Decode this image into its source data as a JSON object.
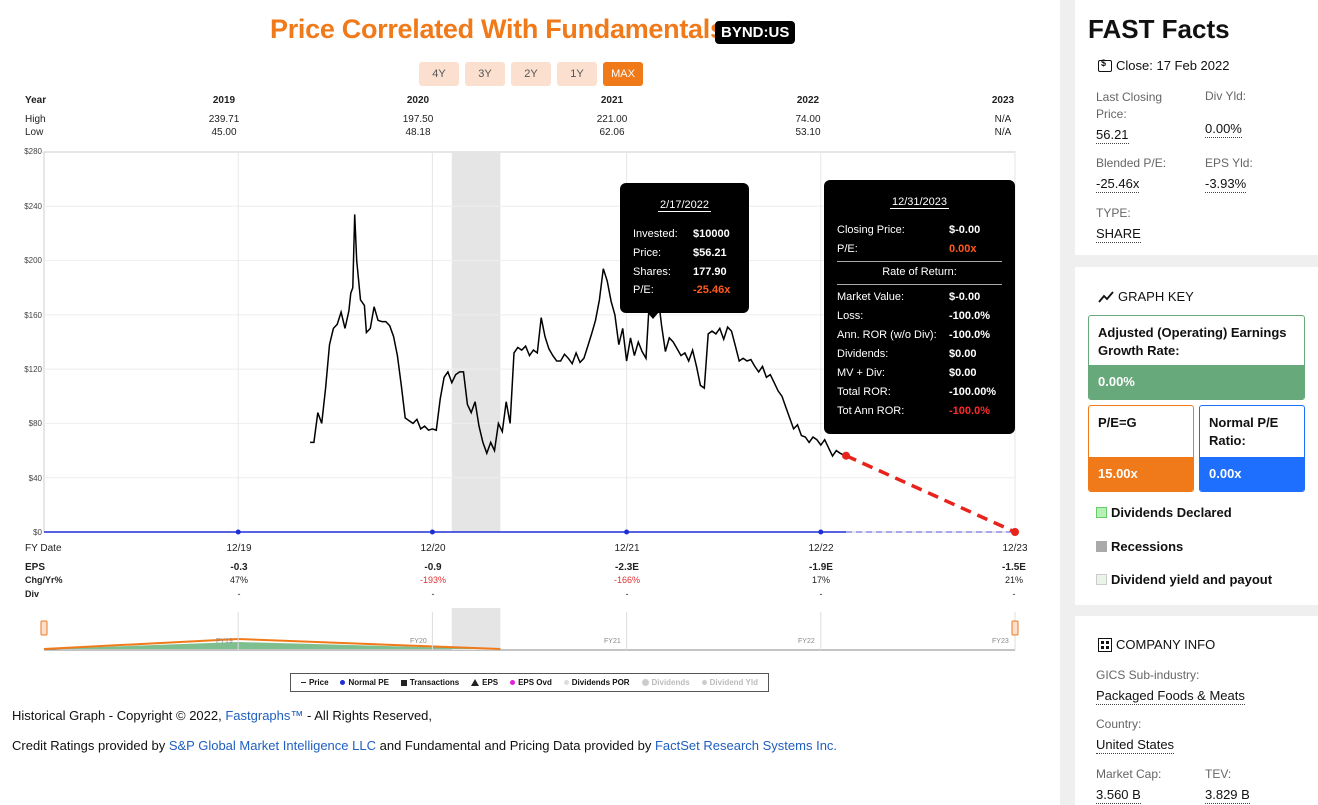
{
  "header": {
    "title": "Price Correlated With Fundamentals",
    "ticker": "BYND:US",
    "ranges": [
      {
        "label": "4Y",
        "active": false
      },
      {
        "label": "3Y",
        "active": false
      },
      {
        "label": "2Y",
        "active": false
      },
      {
        "label": "1Y",
        "active": false
      },
      {
        "label": "MAX",
        "active": true
      }
    ]
  },
  "year_table": {
    "year_label": "Year",
    "high_label": "High",
    "low_label": "Low",
    "years": [
      "2019",
      "2020",
      "2021",
      "2022",
      "2023"
    ],
    "high": [
      "239.71",
      "197.50",
      "221.00",
      "74.00",
      "N/A"
    ],
    "low": [
      "45.00",
      "48.18",
      "62.06",
      "53.10",
      "N/A"
    ]
  },
  "chart_data": {
    "type": "line",
    "y_ticks": [
      "$280",
      "$240",
      "$200",
      "$160",
      "$120",
      "$80",
      "$40",
      "$0"
    ],
    "ylim": [
      0,
      280
    ],
    "x_ticks": [
      "12/19",
      "12/20",
      "12/21",
      "12/22",
      "12/23"
    ],
    "fy_date_label": "FY Date",
    "recession_band": {
      "start": 2020.1,
      "end": 2020.35
    },
    "series": [
      {
        "name": "Price",
        "x": [
          2019.37,
          2019.39,
          2019.41,
          2019.43,
          2019.45,
          2019.47,
          2019.49,
          2019.51,
          2019.53,
          2019.55,
          2019.57,
          2019.58,
          2019.59,
          2019.6,
          2019.61,
          2019.63,
          2019.65,
          2019.66,
          2019.68,
          2019.7,
          2019.72,
          2019.74,
          2019.76,
          2019.78,
          2019.8,
          2019.82,
          2019.84,
          2019.86,
          2019.88,
          2019.9,
          2019.92,
          2019.94,
          2019.96,
          2019.98,
          2020.0,
          2020.02,
          2020.04,
          2020.06,
          2020.08,
          2020.1,
          2020.12,
          2020.14,
          2020.16,
          2020.18,
          2020.2,
          2020.22,
          2020.24,
          2020.26,
          2020.28,
          2020.3,
          2020.32,
          2020.34,
          2020.36,
          2020.38,
          2020.4,
          2020.42,
          2020.44,
          2020.46,
          2020.48,
          2020.5,
          2020.52,
          2020.54,
          2020.56,
          2020.58,
          2020.6,
          2020.62,
          2020.64,
          2020.66,
          2020.68,
          2020.7,
          2020.72,
          2020.74,
          2020.76,
          2020.78,
          2020.8,
          2020.82,
          2020.84,
          2020.86,
          2020.88,
          2020.9,
          2020.92,
          2020.94,
          2020.96,
          2020.98,
          2021.0,
          2021.02,
          2021.04,
          2021.06,
          2021.08,
          2021.1,
          2021.12,
          2021.14,
          2021.16,
          2021.18,
          2021.2,
          2021.22,
          2021.24,
          2021.26,
          2021.28,
          2021.3,
          2021.32,
          2021.34,
          2021.36,
          2021.38,
          2021.4,
          2021.42,
          2021.44,
          2021.46,
          2021.48,
          2021.5,
          2021.52,
          2021.54,
          2021.56,
          2021.58,
          2021.6,
          2021.62,
          2021.64,
          2021.66,
          2021.68,
          2021.7,
          2021.72,
          2021.74,
          2021.76,
          2021.78,
          2021.8,
          2021.82,
          2021.84,
          2021.86,
          2021.88,
          2021.9,
          2021.92,
          2021.94,
          2021.96,
          2021.98,
          2022.0,
          2022.02,
          2022.04,
          2022.06,
          2022.08,
          2022.1,
          2022.13
        ],
        "values": [
          66,
          66,
          88,
          80,
          106,
          138,
          150,
          153,
          162,
          150,
          163,
          176,
          180,
          234,
          200,
          171,
          167,
          147,
          150,
          166,
          156,
          155,
          155,
          152,
          144,
          130,
          108,
          84,
          82,
          80,
          83,
          76,
          78,
          75,
          76,
          75,
          98,
          114,
          118,
          110,
          116,
          118,
          118,
          94,
          88,
          96,
          78,
          66,
          58,
          66,
          60,
          80,
          74,
          96,
          80,
          132,
          136,
          134,
          137,
          130,
          134,
          132,
          158,
          144,
          135,
          130,
          126,
          126,
          131,
          128,
          124,
          132,
          125,
          128,
          137,
          146,
          156,
          171,
          194,
          185,
          170,
          160,
          138,
          150,
          126,
          143,
          130,
          140,
          133,
          128,
          177,
          170,
          176,
          152,
          133,
          143,
          140,
          135,
          130,
          132,
          126,
          134,
          122,
          108,
          106,
          146,
          148,
          146,
          150,
          142,
          151,
          148,
          137,
          126,
          128,
          126,
          127,
          122,
          118,
          122,
          114,
          116,
          110,
          104,
          100,
          92,
          84,
          76,
          79,
          71,
          70,
          66,
          70,
          68,
          64,
          68,
          62,
          56,
          60,
          58,
          56
        ],
        "color": "#000000"
      },
      {
        "name": "Projection",
        "x": [
          2022.13,
          2023.0
        ],
        "values": [
          56.21,
          0
        ],
        "color": "#e8231c"
      }
    ],
    "fy_markers_x": [
      2019.0,
      2020.0,
      2021.0,
      2022.0,
      2023.0
    ],
    "rows": {
      "eps_label": "EPS",
      "chg_label": "Chg/Yr%",
      "div_label": "Div",
      "eps": [
        "-0.3",
        "-0.9",
        "-2.3E",
        "-1.9E",
        "-1.5E"
      ],
      "chg": [
        "47%",
        "-193%",
        "-166%",
        "17%",
        "21%"
      ],
      "div": [
        "-",
        "-",
        "-",
        "-",
        "-"
      ]
    },
    "navigator_labels": [
      "FY19",
      "FY20",
      "FY21",
      "FY22",
      "FY23"
    ],
    "colors": {
      "accent": "#f07a1a",
      "projection": "#e8231c",
      "normal_pe": "#1e2fd6",
      "recession": "#e5e5e5"
    }
  },
  "tooltip_current": {
    "date": "2/17/2022",
    "rows": [
      {
        "label": "Invested:",
        "value": "$10000"
      },
      {
        "label": "Price:",
        "value": "$56.21"
      },
      {
        "label": "Shares:",
        "value": "177.90"
      },
      {
        "label": "P/E:",
        "value": "-25.46x"
      }
    ]
  },
  "tooltip_future": {
    "date": "12/31/2023",
    "rows_top": [
      {
        "label": "Closing Price:",
        "value": "$-0.00"
      },
      {
        "label": "P/E:",
        "value": "0.00x"
      }
    ],
    "ror_label": "Rate of Return:",
    "rows_bottom": [
      {
        "label": "Market Value:",
        "value": "$-0.00"
      },
      {
        "label": "Loss:",
        "value": "-100.0%"
      },
      {
        "label": "Ann. ROR (w/o Div):",
        "value": "-100.0%"
      },
      {
        "label": "Dividends:",
        "value": "$0.00"
      },
      {
        "label": "MV + Div:",
        "value": "$0.00"
      },
      {
        "label": "Total ROR:",
        "value": "-100.00%"
      },
      {
        "label": "Tot Ann ROR:",
        "value": "-100.0%"
      }
    ]
  },
  "legend": {
    "items": [
      "Price",
      "Normal PE",
      "Transactions",
      "EPS",
      "EPS Ovd",
      "Dividends POR",
      "Dividends",
      "Dividend Yld"
    ]
  },
  "footer": {
    "line1_prefix": "Historical Graph - Copyright © 2022,",
    "line1_link": "Fastgraphs™",
    "line1_suffix": "- All Rights Reserved,",
    "line2_a": "Credit Ratings provided by",
    "line2_link1": "S&P Global Market Intelligence LLC",
    "line2_b": "and Fundamental and Pricing Data provided by",
    "line2_link2": "FactSet Research Systems Inc."
  },
  "sidebar": {
    "title": "FAST Facts",
    "close_label": "Close: 17 Feb 2022",
    "facts": {
      "last_close_label": "Last Closing Price:",
      "last_close_value": "56.21",
      "div_yld_label": "Div Yld:",
      "div_yld_value": "0.00%",
      "blended_pe_label": "Blended P/E:",
      "blended_pe_value": "-25.46x",
      "eps_yld_label": "EPS Yld:",
      "eps_yld_value": "-3.93%",
      "type_label": "TYPE:",
      "type_value": "SHARE"
    },
    "graph_key": {
      "title": "GRAPH KEY",
      "earnings_title": "Adjusted (Operating) Earnings Growth Rate:",
      "earnings_value": "0.00%",
      "pe_g_title": "P/E=G",
      "pe_g_value": "15.00x",
      "normal_pe_title": "Normal P/E Ratio:",
      "normal_pe_value": "0.00x",
      "dividends_declared": "Dividends Declared",
      "recessions": "Recessions",
      "div_yield_payout": "Dividend yield and payout"
    },
    "company": {
      "title": "COMPANY INFO",
      "gics_label": "GICS Sub-industry:",
      "gics_value": "Packaged Foods & Meats",
      "country_label": "Country:",
      "country_value": "United States",
      "market_cap_label": "Market Cap:",
      "market_cap_value": "3.560 B",
      "tev_label": "TEV:",
      "tev_value": "3.829 B"
    }
  }
}
